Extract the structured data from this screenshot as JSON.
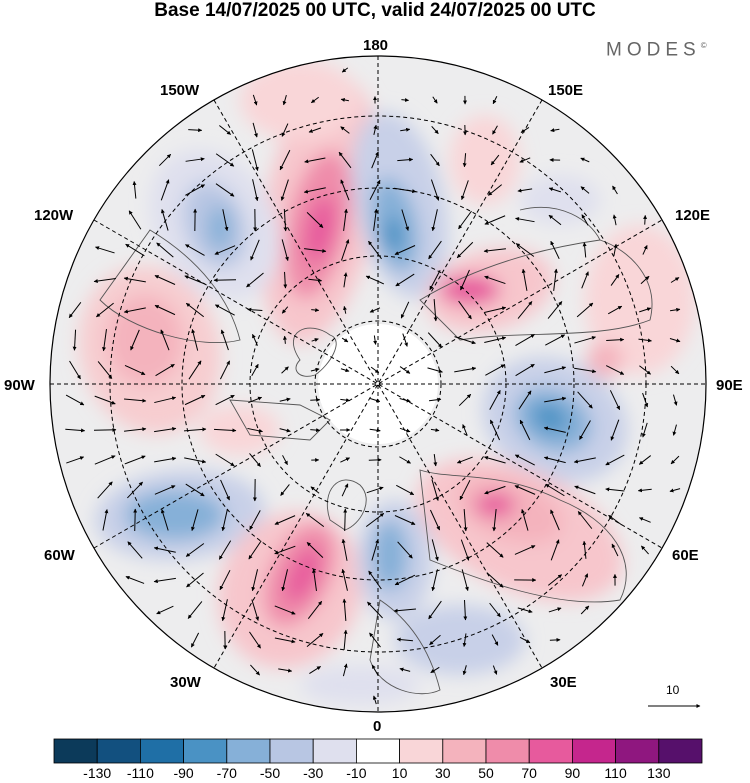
{
  "title": "Base 14/07/2025 00 UTC, valid 24/07/2025 00 UTC",
  "brand": "MODES",
  "brand_mark": "©",
  "longitude_labels": {
    "top": "180",
    "bottom": "0",
    "left": "90W",
    "right": "90E",
    "upper_left": "150W",
    "upper_left_2": "120W",
    "lower_left": "60W",
    "lower_left_2": "30W",
    "upper_right": "150E",
    "upper_right_2": "120E",
    "lower_right": "60E",
    "lower_right_2": "30E"
  },
  "vector_scale": {
    "value": "10"
  },
  "colorbar": {
    "ticks": [
      "-130",
      "-110",
      "-90",
      "-70",
      "-50",
      "-30",
      "-10",
      "10",
      "30",
      "50",
      "70",
      "90",
      "110",
      "130"
    ],
    "colors": [
      "#0c3a5a",
      "#12507f",
      "#1f6fa6",
      "#4a92c4",
      "#86b0d8",
      "#b8c6e3",
      "#dfe0ee",
      "#ffffff",
      "#f9d6d8",
      "#f4b3bd",
      "#ef8caa",
      "#e75a9d",
      "#c5268d",
      "#8f177f",
      "#56106b"
    ]
  },
  "map": {
    "projection": "north polar stereographic",
    "anomaly_centers": [
      {
        "name": "positive",
        "lon_label": "170W",
        "value": 70
      },
      {
        "name": "negative",
        "lon_label": "165E",
        "value": -70
      },
      {
        "name": "negative",
        "lon_label": "135W",
        "value": -50
      },
      {
        "name": "positive",
        "lon_label": "105W",
        "value": 50
      },
      {
        "name": "positive",
        "lon_label": "150E",
        "value": 50
      },
      {
        "name": "negative",
        "lon_label": "95E",
        "value": -70
      },
      {
        "name": "positive",
        "lon_label": "65E",
        "value": 50
      },
      {
        "name": "negative",
        "lon_label": "65W",
        "value": -50
      },
      {
        "name": "positive",
        "lon_label": "30W",
        "value": 70
      },
      {
        "name": "negative",
        "lon_label": "10E",
        "value": -50
      }
    ]
  }
}
